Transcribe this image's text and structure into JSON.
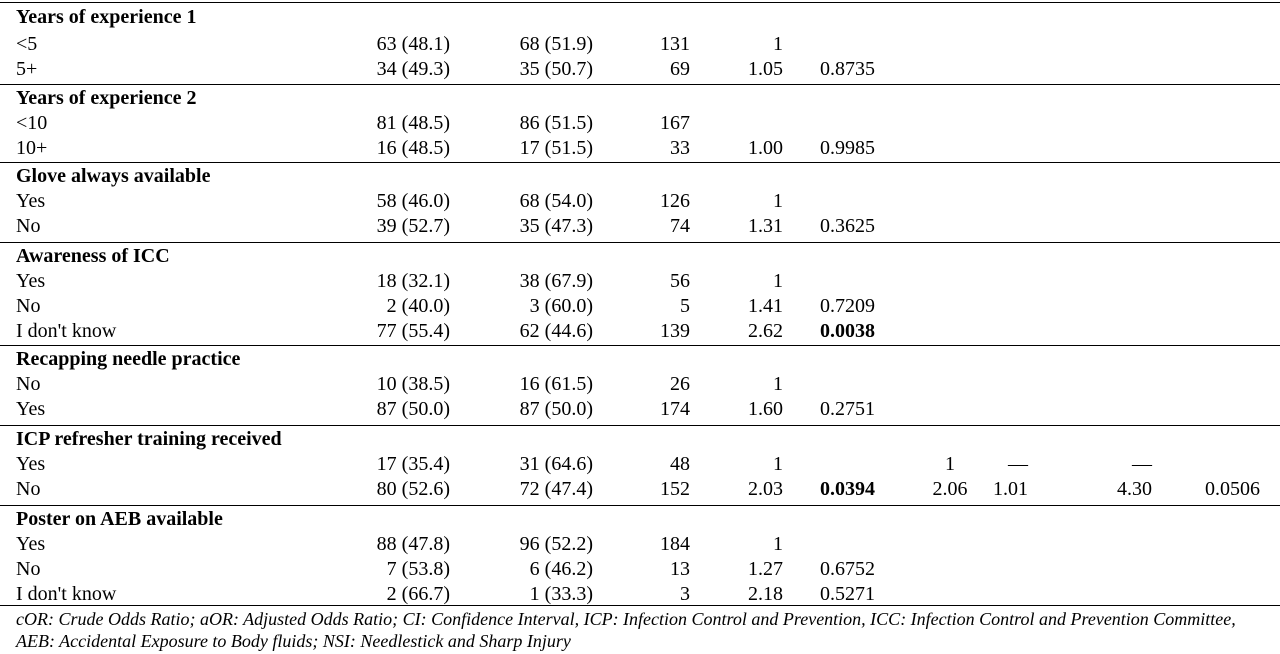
{
  "sections": [
    {
      "title": "Years of experience 1",
      "rows": [
        {
          "label": "<5",
          "col1": "63 (48.1)",
          "col2": "68 (51.9)",
          "total": "131",
          "cor": "1",
          "p": ""
        },
        {
          "label": "5+",
          "col1": "34 (49.3)",
          "col2": "35 (50.7)",
          "total": "69",
          "cor": "1.05",
          "p": "0.8735"
        }
      ]
    },
    {
      "title": "Years of experience 2",
      "rows": [
        {
          "label": "<10",
          "col1": "81 (48.5)",
          "col2": "86 (51.5)",
          "total": "167",
          "cor": "",
          "p": ""
        },
        {
          "label": "10+",
          "col1": "16 (48.5)",
          "col2": "17 (51.5)",
          "total": "33",
          "cor": "1.00",
          "p": "0.9985"
        }
      ]
    },
    {
      "title": "Glove always available",
      "rows": [
        {
          "label": "Yes",
          "col1": "58 (46.0)",
          "col2": "68 (54.0)",
          "total": "126",
          "cor": "1",
          "p": ""
        },
        {
          "label": "No",
          "col1": "39 (52.7)",
          "col2": "35 (47.3)",
          "total": "74",
          "cor": "1.31",
          "p": "0.3625"
        }
      ]
    },
    {
      "title": "Awareness of ICC",
      "rows": [
        {
          "label": "Yes",
          "col1": "18 (32.1)",
          "col2": "38 (67.9)",
          "total": "56",
          "cor": "1",
          "p": ""
        },
        {
          "label": "No",
          "col1": "2 (40.0)",
          "col2": "3 (60.0)",
          "total": "5",
          "cor": "1.41",
          "p": "0.7209"
        },
        {
          "label": "I don't know",
          "col1": "77 (55.4)",
          "col2": "62 (44.6)",
          "total": "139",
          "cor": "2.62",
          "p": "0.0038",
          "p_bold": true
        }
      ]
    },
    {
      "title": "Recapping needle practice",
      "rows": [
        {
          "label": "No",
          "col1": "10 (38.5)",
          "col2": "16 (61.5)",
          "total": "26",
          "cor": "1",
          "p": ""
        },
        {
          "label": "Yes",
          "col1": "87 (50.0)",
          "col2": "87 (50.0)",
          "total": "174",
          "cor": "1.60",
          "p": "0.2751"
        }
      ]
    },
    {
      "title": "ICP refresher training received",
      "rows": [
        {
          "label": "Yes",
          "col1": "17 (35.4)",
          "col2": "31 (64.6)",
          "total": "48",
          "cor": "1",
          "p": "",
          "aor": "1",
          "ci_low": "—",
          "ci_high": "—",
          "p_adj": ""
        },
        {
          "label": "No",
          "col1": "80 (52.6)",
          "col2": "72 (47.4)",
          "total": "152",
          "cor": "2.03",
          "p": "0.0394",
          "p_bold": true,
          "aor": "2.06",
          "ci_low": "1.01",
          "ci_high": "4.30",
          "p_adj": "0.0506"
        }
      ]
    },
    {
      "title": "Poster on AEB available",
      "rows": [
        {
          "label": "Yes",
          "col1": "88 (47.8)",
          "col2": "96 (52.2)",
          "total": "184",
          "cor": "1",
          "p": ""
        },
        {
          "label": "No",
          "col1": "7 (53.8)",
          "col2": "6 (46.2)",
          "total": "13",
          "cor": "1.27",
          "p": "0.6752"
        },
        {
          "label": "I don't know",
          "col1": "2 (66.7)",
          "col2": "1 (33.3)",
          "total": "3",
          "cor": "2.18",
          "p": "0.5271"
        }
      ]
    }
  ],
  "footnote": "cOR: Crude Odds Ratio; aOR: Adjusted Odds Ratio; CI: Confidence Interval, ICP: Infection Control and Prevention, ICC: Infection Control and Prevention Committee, AEB: Accidental Exposure to Body fluids; NSI: Needlestick and Sharp Injury"
}
